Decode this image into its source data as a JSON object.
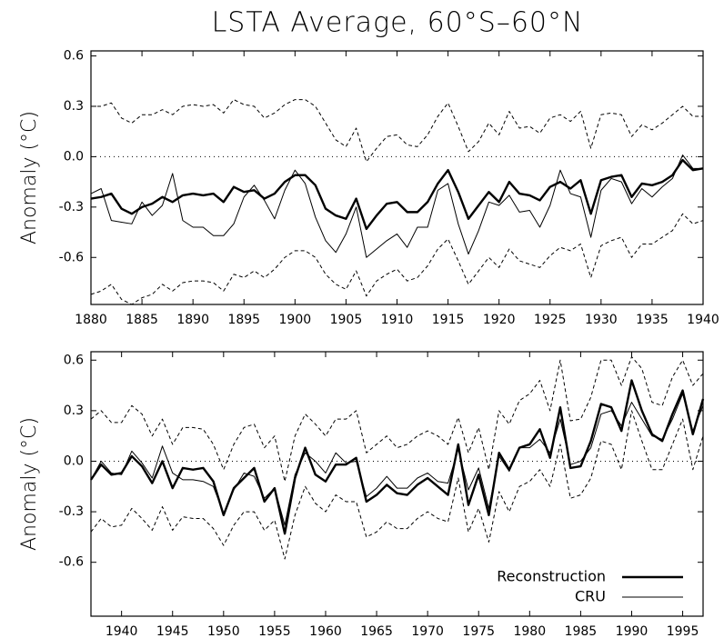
{
  "chart_data": [
    {
      "type": "line",
      "title": "LSTA Average, 60°S–60°N",
      "y_label": "Anomaly (°C)",
      "x": [
        1880,
        1881,
        1882,
        1883,
        1884,
        1885,
        1886,
        1887,
        1888,
        1889,
        1890,
        1891,
        1892,
        1893,
        1894,
        1895,
        1896,
        1897,
        1898,
        1899,
        1900,
        1901,
        1902,
        1903,
        1904,
        1905,
        1906,
        1907,
        1908,
        1909,
        1910,
        1911,
        1912,
        1913,
        1914,
        1915,
        1916,
        1917,
        1918,
        1919,
        1920,
        1921,
        1922,
        1923,
        1924,
        1925,
        1926,
        1927,
        1928,
        1929,
        1930,
        1931,
        1932,
        1933,
        1934,
        1935,
        1936,
        1937,
        1938,
        1939,
        1940
      ],
      "xlim": [
        1880,
        1940
      ],
      "xticks": [
        1880,
        1885,
        1890,
        1895,
        1900,
        1905,
        1910,
        1915,
        1920,
        1925,
        1930,
        1935,
        1940
      ],
      "ylim": [
        -0.88,
        0.63
      ],
      "yticks": [
        -0.6,
        -0.3,
        {
          "value": 0,
          "label": "0.0"
        },
        0.3,
        0.6
      ],
      "zero_line": "dotted",
      "series": [
        {
          "style": "thick",
          "color": "#000000",
          "values": [
            -0.25,
            -0.24,
            -0.22,
            -0.31,
            -0.34,
            -0.3,
            -0.28,
            -0.24,
            -0.27,
            -0.23,
            -0.22,
            -0.23,
            -0.22,
            -0.27,
            -0.18,
            -0.21,
            -0.2,
            -0.25,
            -0.22,
            -0.15,
            -0.11,
            -0.11,
            -0.17,
            -0.31,
            -0.35,
            -0.37,
            -0.25,
            -0.43,
            -0.35,
            -0.28,
            -0.27,
            -0.33,
            -0.33,
            -0.27,
            -0.16,
            -0.08,
            -0.21,
            -0.37,
            -0.29,
            -0.21,
            -0.27,
            -0.15,
            -0.22,
            -0.23,
            -0.26,
            -0.18,
            -0.15,
            -0.19,
            -0.14,
            -0.34,
            -0.14,
            -0.12,
            -0.11,
            -0.24,
            -0.16,
            -0.17,
            -0.15,
            -0.11,
            -0.02,
            -0.08,
            -0.07
          ]
        },
        {
          "style": "thin",
          "color": "#000000",
          "values": [
            -0.22,
            -0.19,
            -0.38,
            -0.39,
            -0.4,
            -0.27,
            -0.35,
            -0.29,
            -0.1,
            -0.38,
            -0.42,
            -0.42,
            -0.47,
            -0.47,
            -0.4,
            -0.24,
            -0.17,
            -0.26,
            -0.37,
            -0.2,
            -0.08,
            -0.16,
            -0.36,
            -0.5,
            -0.57,
            -0.46,
            -0.3,
            -0.6,
            -0.55,
            -0.5,
            -0.46,
            -0.54,
            -0.42,
            -0.42,
            -0.2,
            -0.16,
            -0.4,
            -0.58,
            -0.44,
            -0.27,
            -0.29,
            -0.23,
            -0.33,
            -0.32,
            -0.42,
            -0.29,
            -0.08,
            -0.22,
            -0.24,
            -0.48,
            -0.2,
            -0.13,
            -0.15,
            -0.28,
            -0.19,
            -0.24,
            -0.18,
            -0.13,
            0.01,
            -0.07,
            -0.07
          ]
        },
        {
          "style": "dashed",
          "color": "#000000",
          "values": [
            0.3,
            0.3,
            0.32,
            0.23,
            0.2,
            0.25,
            0.25,
            0.28,
            0.25,
            0.3,
            0.31,
            0.3,
            0.31,
            0.26,
            0.34,
            0.31,
            0.3,
            0.23,
            0.26,
            0.31,
            0.34,
            0.34,
            0.3,
            0.2,
            0.1,
            0.06,
            0.17,
            -0.03,
            0.05,
            0.12,
            0.13,
            0.07,
            0.06,
            0.13,
            0.24,
            0.32,
            0.18,
            0.03,
            0.09,
            0.2,
            0.13,
            0.27,
            0.17,
            0.18,
            0.14,
            0.23,
            0.25,
            0.21,
            0.27,
            0.05,
            0.25,
            0.26,
            0.25,
            0.12,
            0.19,
            0.16,
            0.2,
            0.25,
            0.3,
            0.24,
            0.24
          ]
        },
        {
          "style": "dashed",
          "color": "#000000",
          "values": [
            -0.82,
            -0.8,
            -0.76,
            -0.85,
            -0.88,
            -0.84,
            -0.82,
            -0.76,
            -0.8,
            -0.75,
            -0.74,
            -0.74,
            -0.75,
            -0.8,
            -0.7,
            -0.72,
            -0.68,
            -0.72,
            -0.67,
            -0.6,
            -0.56,
            -0.56,
            -0.6,
            -0.7,
            -0.76,
            -0.79,
            -0.68,
            -0.83,
            -0.74,
            -0.7,
            -0.67,
            -0.74,
            -0.72,
            -0.65,
            -0.55,
            -0.49,
            -0.62,
            -0.76,
            -0.68,
            -0.6,
            -0.66,
            -0.55,
            -0.62,
            -0.64,
            -0.66,
            -0.59,
            -0.54,
            -0.56,
            -0.52,
            -0.72,
            -0.53,
            -0.5,
            -0.48,
            -0.6,
            -0.52,
            -0.52,
            -0.48,
            -0.44,
            -0.34,
            -0.4,
            -0.38
          ]
        }
      ]
    },
    {
      "type": "line",
      "y_label": "Anomaly (°C)",
      "x": [
        1937,
        1938,
        1939,
        1940,
        1941,
        1942,
        1943,
        1944,
        1945,
        1946,
        1947,
        1948,
        1949,
        1950,
        1951,
        1952,
        1953,
        1954,
        1955,
        1956,
        1957,
        1958,
        1959,
        1960,
        1961,
        1962,
        1963,
        1964,
        1965,
        1966,
        1967,
        1968,
        1969,
        1970,
        1971,
        1972,
        1973,
        1974,
        1975,
        1976,
        1977,
        1978,
        1979,
        1980,
        1981,
        1982,
        1983,
        1984,
        1985,
        1986,
        1987,
        1988,
        1989,
        1990,
        1991,
        1992,
        1993,
        1994,
        1995,
        1996,
        1997
      ],
      "xlim": [
        1937,
        1997
      ],
      "xticks": [
        1940,
        1945,
        1950,
        1955,
        1960,
        1965,
        1970,
        1975,
        1980,
        1985,
        1990,
        1995
      ],
      "ylim": [
        -0.92,
        0.65
      ],
      "yticks": [
        -0.6,
        -0.3,
        {
          "value": 0,
          "label": "0.0"
        },
        0.3,
        0.6
      ],
      "zero_line": "dotted",
      "legend": "lower right",
      "series": [
        {
          "name": "Reconstruction",
          "style": "thick",
          "color": "#000000",
          "values": [
            -0.11,
            -0.02,
            -0.08,
            -0.07,
            0.03,
            -0.03,
            -0.13,
            0.0,
            -0.16,
            -0.04,
            -0.05,
            -0.04,
            -0.12,
            -0.32,
            -0.16,
            -0.1,
            -0.04,
            -0.24,
            -0.16,
            -0.43,
            -0.1,
            0.08,
            -0.08,
            -0.12,
            -0.02,
            -0.02,
            0.02,
            -0.24,
            -0.2,
            -0.14,
            -0.19,
            -0.2,
            -0.14,
            -0.1,
            -0.15,
            -0.2,
            0.1,
            -0.26,
            -0.08,
            -0.32,
            0.05,
            -0.05,
            0.08,
            0.1,
            0.19,
            0.02,
            0.32,
            -0.04,
            -0.03,
            0.12,
            0.34,
            0.32,
            0.18,
            0.48,
            0.3,
            0.16,
            0.12,
            0.28,
            0.42,
            0.16,
            0.37
          ]
        },
        {
          "name": "CRU",
          "style": "thin",
          "color": "#000000",
          "values": [
            -0.11,
            0.0,
            -0.07,
            -0.08,
            0.06,
            -0.01,
            -0.1,
            0.09,
            -0.07,
            -0.11,
            -0.11,
            -0.12,
            -0.15,
            -0.31,
            -0.17,
            -0.07,
            -0.09,
            -0.22,
            -0.16,
            -0.38,
            -0.08,
            0.05,
            0.0,
            -0.07,
            0.05,
            -0.01,
            0.0,
            -0.21,
            -0.16,
            -0.09,
            -0.16,
            -0.16,
            -0.1,
            -0.07,
            -0.12,
            -0.13,
            0.07,
            -0.17,
            -0.04,
            -0.28,
            0.03,
            -0.06,
            0.08,
            0.08,
            0.13,
            0.05,
            0.25,
            -0.02,
            0.0,
            0.08,
            0.28,
            0.3,
            0.21,
            0.35,
            0.25,
            0.15,
            0.13,
            0.25,
            0.4,
            0.18,
            0.33
          ]
        },
        {
          "style": "dashed",
          "color": "#000000",
          "values": [
            0.25,
            0.3,
            0.23,
            0.23,
            0.33,
            0.28,
            0.15,
            0.25,
            0.1,
            0.2,
            0.2,
            0.19,
            0.1,
            -0.05,
            0.1,
            0.2,
            0.22,
            0.08,
            0.15,
            -0.12,
            0.15,
            0.28,
            0.22,
            0.15,
            0.25,
            0.25,
            0.3,
            0.05,
            0.1,
            0.15,
            0.08,
            0.1,
            0.15,
            0.18,
            0.15,
            0.1,
            0.26,
            0.05,
            0.2,
            -0.05,
            0.3,
            0.22,
            0.36,
            0.4,
            0.48,
            0.3,
            0.6,
            0.24,
            0.25,
            0.38,
            0.6,
            0.6,
            0.45,
            0.62,
            0.55,
            0.35,
            0.33,
            0.5,
            0.6,
            0.45,
            0.52
          ]
        },
        {
          "style": "dashed",
          "color": "#000000",
          "values": [
            -0.42,
            -0.34,
            -0.39,
            -0.38,
            -0.28,
            -0.34,
            -0.41,
            -0.27,
            -0.41,
            -0.33,
            -0.34,
            -0.34,
            -0.4,
            -0.5,
            -0.38,
            -0.3,
            -0.3,
            -0.41,
            -0.35,
            -0.58,
            -0.32,
            -0.15,
            -0.25,
            -0.3,
            -0.2,
            -0.24,
            -0.24,
            -0.45,
            -0.42,
            -0.36,
            -0.4,
            -0.4,
            -0.34,
            -0.3,
            -0.34,
            -0.36,
            -0.1,
            -0.42,
            -0.28,
            -0.48,
            -0.18,
            -0.3,
            -0.15,
            -0.12,
            -0.05,
            -0.15,
            0.1,
            -0.22,
            -0.2,
            -0.1,
            0.12,
            0.1,
            -0.05,
            0.3,
            0.12,
            -0.05,
            -0.05,
            0.1,
            0.25,
            -0.05,
            0.15
          ]
        }
      ]
    }
  ]
}
